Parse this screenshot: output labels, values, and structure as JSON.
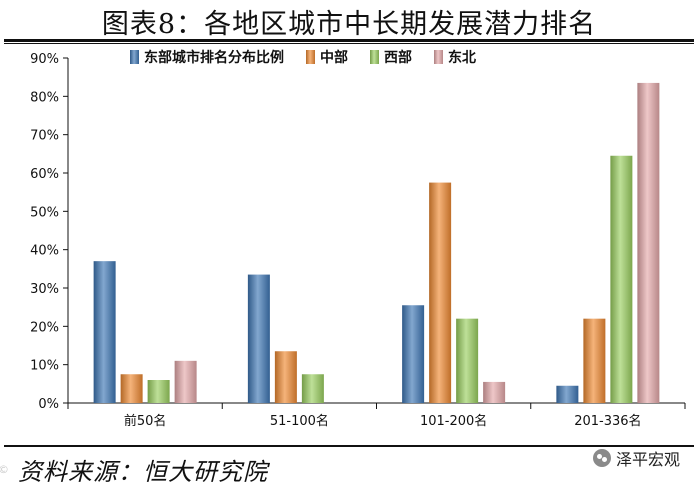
{
  "page": {
    "title": "图表8：各地区城市中长期发展潜力排名",
    "source": "资料来源：恒大研究院",
    "watermark": "©",
    "wechat_label": "泽平宏观",
    "wechat_icon": "wechat-icon"
  },
  "chart_data": {
    "type": "bar",
    "title": "",
    "xlabel": "",
    "ylabel": "",
    "categories": [
      "前50名",
      "51-100名",
      "101-200名",
      "201-336名"
    ],
    "ylim": [
      0,
      90
    ],
    "yticks": [
      0,
      10,
      20,
      30,
      40,
      50,
      60,
      70,
      80,
      90
    ],
    "ytick_format": "percent",
    "grid": false,
    "legend_position": "top",
    "series": [
      {
        "name": "东部城市排名分布比例",
        "color": "#3f77b5",
        "values": [
          37,
          33.5,
          25.5,
          4.5
        ]
      },
      {
        "name": "中部",
        "color": "#ef8a33",
        "values": [
          7.5,
          13.5,
          57.5,
          22
        ]
      },
      {
        "name": "西部",
        "color": "#9bd060",
        "values": [
          6,
          7.5,
          22,
          64.5
        ]
      },
      {
        "name": "东北",
        "color": "#e5a9aa",
        "values": [
          11,
          0,
          5.5,
          83.5
        ]
      }
    ]
  }
}
